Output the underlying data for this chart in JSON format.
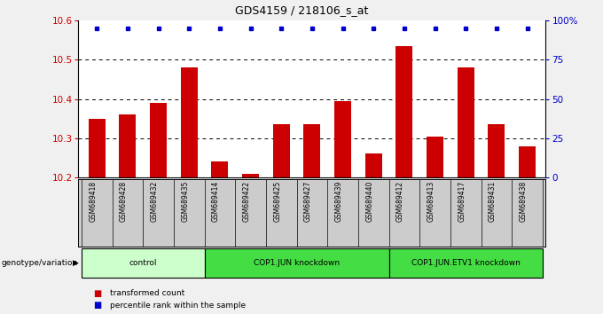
{
  "title": "GDS4159 / 218106_s_at",
  "samples": [
    "GSM689418",
    "GSM689428",
    "GSM689432",
    "GSM689435",
    "GSM689414",
    "GSM689422",
    "GSM689425",
    "GSM689427",
    "GSM689439",
    "GSM689440",
    "GSM689412",
    "GSM689413",
    "GSM689417",
    "GSM689431",
    "GSM689438"
  ],
  "bar_values": [
    10.35,
    10.36,
    10.39,
    10.48,
    10.24,
    10.21,
    10.335,
    10.335,
    10.395,
    10.26,
    10.535,
    10.305,
    10.48,
    10.335,
    10.28
  ],
  "percentile_values": [
    95,
    95,
    95,
    95,
    95,
    95,
    95,
    95,
    95,
    95,
    95,
    95,
    95,
    95,
    95
  ],
  "bar_color": "#cc0000",
  "percentile_color": "#0000cc",
  "ylim_left": [
    10.2,
    10.6
  ],
  "ylim_right": [
    0,
    100
  ],
  "yticks_left": [
    10.2,
    10.3,
    10.4,
    10.5,
    10.6
  ],
  "yticks_right": [
    0,
    25,
    50,
    75,
    100
  ],
  "ytick_labels_right": [
    "0",
    "25",
    "50",
    "75",
    "100%"
  ],
  "groups": [
    {
      "label": "control",
      "start": 0,
      "end": 3,
      "color": "#ccffcc"
    },
    {
      "label": "COP1.JUN knockdown",
      "start": 4,
      "end": 9,
      "color": "#44dd44"
    },
    {
      "label": "COP1.JUN.ETV1 knockdown",
      "start": 10,
      "end": 14,
      "color": "#44dd44"
    }
  ],
  "dotted_yticks": [
    10.3,
    10.4,
    10.5
  ],
  "fig_bg": "#f0f0f0",
  "plot_bg": "#ffffff",
  "sample_area_bg": "#cccccc",
  "legend": [
    {
      "label": "transformed count",
      "color": "#cc0000"
    },
    {
      "label": "percentile rank within the sample",
      "color": "#0000cc"
    }
  ]
}
